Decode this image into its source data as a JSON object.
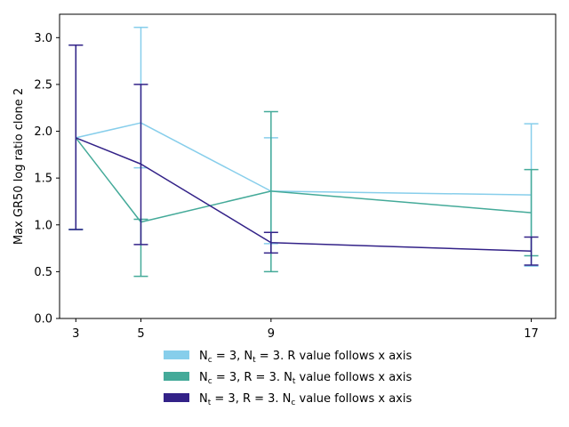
{
  "chart_data": {
    "type": "line",
    "title": "",
    "xlabel": "",
    "ylabel": "Max GR50 log ratio clone 2",
    "x_ticks": [
      "3",
      "5",
      "9",
      "17"
    ],
    "y_ticks": [
      "0.0",
      "0.5",
      "1.0",
      "1.5",
      "2.0",
      "2.5",
      "3.0"
    ],
    "xlim": [
      2.5,
      17.75
    ],
    "ylim": [
      0.0,
      3.25
    ],
    "grid": false,
    "legend_position": "below plot",
    "series": [
      {
        "name": "N_c = 3, N_t = 3. R value follows x axis",
        "legend": {
          "p1": "N",
          "s1": "c",
          "p2": " = 3, N",
          "s2": "t",
          "p3": " = 3. R value follows x axis"
        },
        "color": "#87ceeb",
        "x": [
          3,
          5,
          9,
          17
        ],
        "y": [
          1.93,
          2.09,
          1.36,
          1.32
        ],
        "yerr_low": [
          0.95,
          1.61,
          0.8,
          0.56
        ],
        "yerr_high": [
          2.92,
          3.11,
          1.93,
          2.08
        ]
      },
      {
        "name": "N_c = 3, R = 3. N_t value follows x axis",
        "legend": {
          "p1": "N",
          "s1": "c",
          "p2": " = 3, R = 3. N",
          "s2": "t",
          "p3": " value follows x axis"
        },
        "color": "#44aa99",
        "x": [
          3,
          5,
          9,
          17
        ],
        "y": [
          1.93,
          1.03,
          1.36,
          1.13
        ],
        "yerr_low": [
          0.95,
          0.45,
          0.5,
          0.67
        ],
        "yerr_high": [
          2.92,
          1.06,
          2.21,
          1.59
        ]
      },
      {
        "name": "N_t = 3, R = 3. N_c value follows x axis",
        "legend": {
          "p1": "N",
          "s1": "t",
          "p2": " = 3, R = 3. N",
          "s2": "c",
          "p3": " value follows x axis"
        },
        "color": "#332288",
        "x": [
          3,
          5,
          9,
          17
        ],
        "y": [
          1.93,
          1.65,
          0.81,
          0.72
        ],
        "yerr_low": [
          0.95,
          0.79,
          0.7,
          0.57
        ],
        "yerr_high": [
          2.92,
          2.5,
          0.92,
          0.87
        ]
      }
    ]
  }
}
